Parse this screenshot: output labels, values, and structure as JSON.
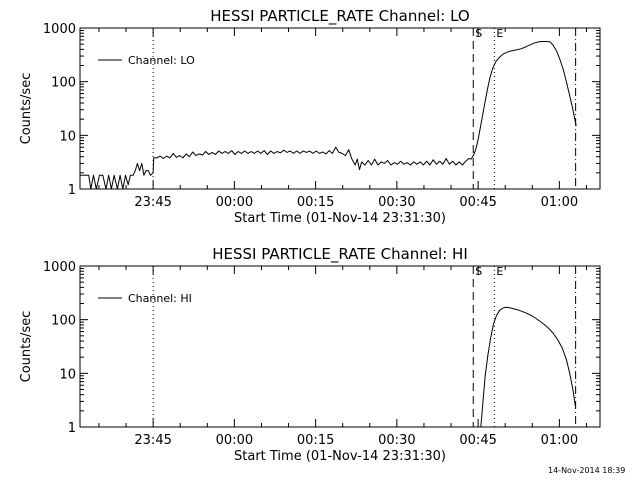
{
  "timestamp": "14-Nov-2014 18:39",
  "chart_data": [
    {
      "type": "line",
      "title": "HESSI PARTICLE_RATE Channel: LO",
      "xlabel": "Start Time (01-Nov-14 23:31:30)",
      "ylabel": "Counts/sec",
      "x_unit": "minutes since start time",
      "xlim": [
        0,
        96
      ],
      "ylim": [
        1,
        1000
      ],
      "yscale": "log",
      "x_ticks": [
        {
          "value": 13.5,
          "label": "23:45"
        },
        {
          "value": 28.5,
          "label": "00:00"
        },
        {
          "value": 43.5,
          "label": "00:15"
        },
        {
          "value": 58.5,
          "label": "00:30"
        },
        {
          "value": 73.5,
          "label": "00:45"
        },
        {
          "value": 88.5,
          "label": "01:00"
        }
      ],
      "y_ticks": [
        {
          "value": 1,
          "label": "1"
        },
        {
          "value": 10,
          "label": "10"
        },
        {
          "value": 100,
          "label": "100"
        },
        {
          "value": 1000,
          "label": "1000"
        }
      ],
      "legend": {
        "position": "top-left",
        "label": "Channel: LO"
      },
      "markers": [
        {
          "x": 13.5,
          "style": "dotted",
          "label": ""
        },
        {
          "x": 72.6,
          "style": "dashed",
          "label": "S"
        },
        {
          "x": 76.5,
          "style": "dotted",
          "label": "E"
        },
        {
          "x": 91.5,
          "style": "dashdot",
          "label": ""
        }
      ],
      "series": [
        {
          "name": "Channel: LO",
          "points": [
            [
              0.0,
              1.8
            ],
            [
              1.0,
              1.8
            ],
            [
              1.6,
              1.8
            ],
            [
              2.0,
              1.0
            ],
            [
              2.5,
              1.8
            ],
            [
              3.0,
              1.0
            ],
            [
              3.6,
              1.8
            ],
            [
              4.2,
              1.8
            ],
            [
              4.8,
              1.0
            ],
            [
              5.3,
              1.8
            ],
            [
              5.8,
              1.0
            ],
            [
              6.3,
              1.8
            ],
            [
              6.9,
              1.0
            ],
            [
              7.4,
              1.8
            ],
            [
              7.9,
              1.0
            ],
            [
              8.4,
              1.8
            ],
            [
              8.9,
              1.2
            ],
            [
              9.3,
              1.8
            ],
            [
              9.8,
              1.8
            ],
            [
              10.2,
              2.2
            ],
            [
              10.6,
              3.0
            ],
            [
              11.0,
              2.2
            ],
            [
              11.4,
              3.0
            ],
            [
              11.8,
              1.8
            ],
            [
              12.2,
              2.2
            ],
            [
              12.6,
              2.2
            ],
            [
              13.0,
              1.8
            ],
            [
              13.5,
              2.0
            ],
            [
              13.6,
              3.8
            ],
            [
              14.2,
              3.8
            ],
            [
              14.8,
              4.1
            ],
            [
              15.4,
              3.7
            ],
            [
              16.0,
              4.1
            ],
            [
              16.6,
              3.8
            ],
            [
              17.2,
              4.6
            ],
            [
              17.8,
              3.9
            ],
            [
              18.4,
              4.2
            ],
            [
              19.0,
              3.8
            ],
            [
              19.6,
              4.5
            ],
            [
              20.2,
              4.0
            ],
            [
              20.8,
              4.9
            ],
            [
              21.4,
              4.2
            ],
            [
              22.0,
              4.5
            ],
            [
              22.6,
              4.3
            ],
            [
              23.2,
              5.0
            ],
            [
              23.8,
              4.4
            ],
            [
              24.4,
              4.8
            ],
            [
              25.0,
              4.4
            ],
            [
              25.6,
              5.1
            ],
            [
              26.2,
              4.6
            ],
            [
              26.8,
              5.0
            ],
            [
              27.4,
              4.6
            ],
            [
              28.0,
              5.2
            ],
            [
              28.6,
              4.4
            ],
            [
              29.2,
              5.0
            ],
            [
              29.8,
              4.6
            ],
            [
              30.4,
              5.1
            ],
            [
              31.0,
              4.6
            ],
            [
              31.6,
              5.0
            ],
            [
              32.2,
              4.6
            ],
            [
              32.8,
              5.1
            ],
            [
              33.4,
              4.6
            ],
            [
              34.0,
              5.2
            ],
            [
              34.6,
              4.4
            ],
            [
              35.2,
              5.1
            ],
            [
              35.8,
              4.6
            ],
            [
              36.4,
              5.0
            ],
            [
              37.0,
              4.7
            ],
            [
              37.6,
              5.3
            ],
            [
              38.2,
              4.8
            ],
            [
              38.8,
              5.1
            ],
            [
              39.4,
              4.6
            ],
            [
              40.0,
              5.1
            ],
            [
              40.6,
              4.6
            ],
            [
              41.2,
              5.1
            ],
            [
              41.8,
              4.8
            ],
            [
              42.4,
              5.1
            ],
            [
              43.0,
              4.6
            ],
            [
              43.6,
              5.1
            ],
            [
              44.2,
              4.6
            ],
            [
              44.8,
              4.9
            ],
            [
              45.4,
              4.5
            ],
            [
              46.0,
              5.2
            ],
            [
              46.6,
              4.6
            ],
            [
              47.2,
              6.0
            ],
            [
              47.8,
              4.8
            ],
            [
              48.4,
              4.6
            ],
            [
              49.0,
              4.2
            ],
            [
              49.6,
              5.4
            ],
            [
              50.2,
              3.6
            ],
            [
              50.8,
              2.8
            ],
            [
              51.2,
              3.6
            ],
            [
              51.6,
              2.3
            ],
            [
              52.0,
              3.2
            ],
            [
              52.6,
              2.8
            ],
            [
              53.2,
              3.4
            ],
            [
              53.8,
              2.8
            ],
            [
              54.4,
              3.6
            ],
            [
              55.0,
              2.8
            ],
            [
              55.6,
              3.2
            ],
            [
              56.2,
              3.0
            ],
            [
              56.8,
              3.4
            ],
            [
              57.4,
              2.8
            ],
            [
              58.0,
              3.1
            ],
            [
              58.6,
              2.9
            ],
            [
              59.2,
              3.3
            ],
            [
              59.8,
              2.9
            ],
            [
              60.4,
              3.1
            ],
            [
              61.0,
              2.8
            ],
            [
              61.6,
              3.2
            ],
            [
              62.2,
              2.9
            ],
            [
              62.8,
              3.2
            ],
            [
              63.4,
              2.8
            ],
            [
              64.0,
              3.3
            ],
            [
              64.6,
              2.8
            ],
            [
              65.2,
              3.5
            ],
            [
              65.8,
              2.9
            ],
            [
              66.4,
              3.3
            ],
            [
              67.0,
              2.9
            ],
            [
              67.6,
              3.7
            ],
            [
              68.2,
              2.9
            ],
            [
              68.8,
              3.3
            ],
            [
              69.4,
              2.8
            ],
            [
              70.0,
              3.2
            ],
            [
              70.6,
              2.8
            ],
            [
              71.2,
              3.3
            ],
            [
              71.8,
              3.7
            ],
            [
              72.2,
              3.6
            ],
            [
              72.6,
              4.2
            ],
            [
              73.0,
              5.2
            ],
            [
              73.4,
              7.5
            ],
            [
              73.8,
              12
            ],
            [
              74.2,
              20
            ],
            [
              74.7,
              38
            ],
            [
              75.2,
              70
            ],
            [
              75.7,
              120
            ],
            [
              76.2,
              180
            ],
            [
              76.8,
              240
            ],
            [
              77.5,
              290
            ],
            [
              78.2,
              330
            ],
            [
              79.0,
              360
            ],
            [
              79.8,
              380
            ],
            [
              80.6,
              390
            ],
            [
              81.4,
              410
            ],
            [
              82.2,
              440
            ],
            [
              83.0,
              480
            ],
            [
              83.8,
              520
            ],
            [
              84.6,
              550
            ],
            [
              85.4,
              560
            ],
            [
              86.2,
              560
            ],
            [
              86.8,
              550
            ],
            [
              87.4,
              470
            ],
            [
              88.0,
              370
            ],
            [
              88.6,
              260
            ],
            [
              89.2,
              170
            ],
            [
              89.8,
              100
            ],
            [
              90.4,
              55
            ],
            [
              91.0,
              30
            ],
            [
              91.6,
              15
            ]
          ]
        }
      ]
    },
    {
      "type": "line",
      "title": "HESSI PARTICLE_RATE Channel: HI",
      "xlabel": "Start Time (01-Nov-14 23:31:30)",
      "ylabel": "Counts/sec",
      "x_unit": "minutes since start time",
      "xlim": [
        0,
        96
      ],
      "ylim": [
        1,
        1000
      ],
      "yscale": "log",
      "x_ticks": [
        {
          "value": 13.5,
          "label": "23:45"
        },
        {
          "value": 28.5,
          "label": "00:00"
        },
        {
          "value": 43.5,
          "label": "00:15"
        },
        {
          "value": 58.5,
          "label": "00:30"
        },
        {
          "value": 73.5,
          "label": "00:45"
        },
        {
          "value": 88.5,
          "label": "01:00"
        }
      ],
      "y_ticks": [
        {
          "value": 1,
          "label": "1"
        },
        {
          "value": 10,
          "label": "10"
        },
        {
          "value": 100,
          "label": "100"
        },
        {
          "value": 1000,
          "label": "1000"
        }
      ],
      "legend": {
        "position": "top-left",
        "label": "Channel: HI"
      },
      "markers": [
        {
          "x": 13.5,
          "style": "dotted",
          "label": ""
        },
        {
          "x": 72.6,
          "style": "dashed",
          "label": "S"
        },
        {
          "x": 76.5,
          "style": "dotted",
          "label": "E"
        },
        {
          "x": 91.5,
          "style": "dashdot",
          "label": ""
        }
      ],
      "series": [
        {
          "name": "Channel: HI",
          "points": [
            [
              74.0,
              1.0
            ],
            [
              74.4,
              3.0
            ],
            [
              74.8,
              9.0
            ],
            [
              75.3,
              22
            ],
            [
              75.8,
              45
            ],
            [
              76.3,
              80
            ],
            [
              76.9,
              120
            ],
            [
              77.5,
              150
            ],
            [
              78.1,
              165
            ],
            [
              78.8,
              170
            ],
            [
              79.5,
              165
            ],
            [
              80.2,
              158
            ],
            [
              81.0,
              150
            ],
            [
              81.8,
              140
            ],
            [
              82.6,
              130
            ],
            [
              83.4,
              118
            ],
            [
              84.2,
              105
            ],
            [
              85.0,
              92
            ],
            [
              85.8,
              80
            ],
            [
              86.6,
              68
            ],
            [
              87.4,
              55
            ],
            [
              88.2,
              42
            ],
            [
              89.0,
              30
            ],
            [
              89.8,
              18
            ],
            [
              90.4,
              10
            ],
            [
              91.0,
              5
            ],
            [
              91.5,
              2.3
            ]
          ]
        }
      ]
    }
  ]
}
